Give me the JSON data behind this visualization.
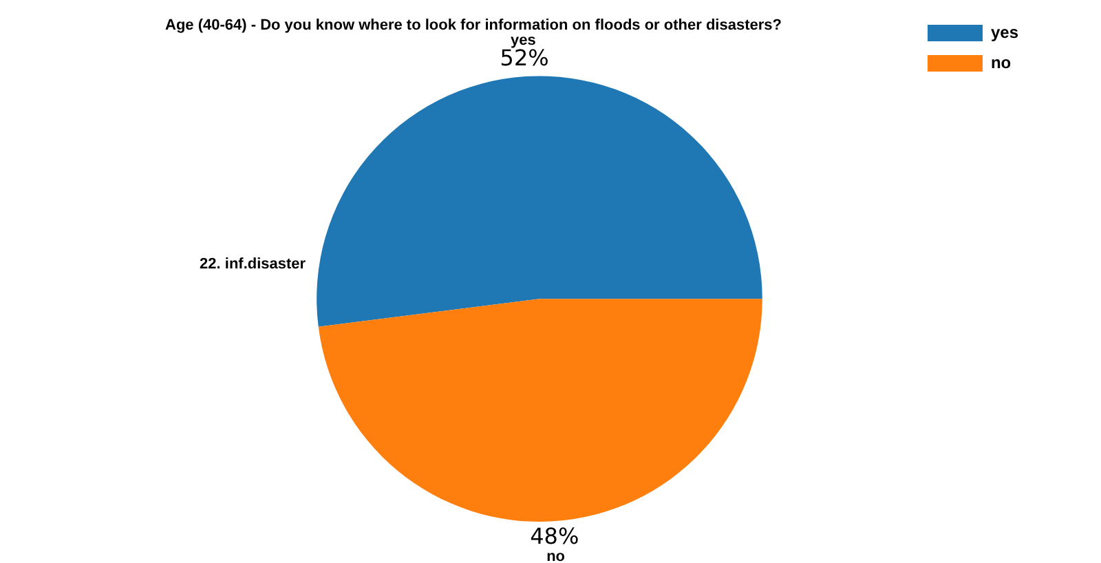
{
  "chart_data": {
    "type": "pie",
    "title": "Age (40-64) - Do you know where to look for information on floods or other disasters?",
    "ylabel": "22. inf.disaster",
    "categories": [
      "yes",
      "no"
    ],
    "values": [
      52,
      48
    ],
    "colors": [
      "#1f77b4",
      "#ff7f0e"
    ],
    "value_labels": [
      "52%",
      "48%"
    ],
    "legend": "top right"
  }
}
